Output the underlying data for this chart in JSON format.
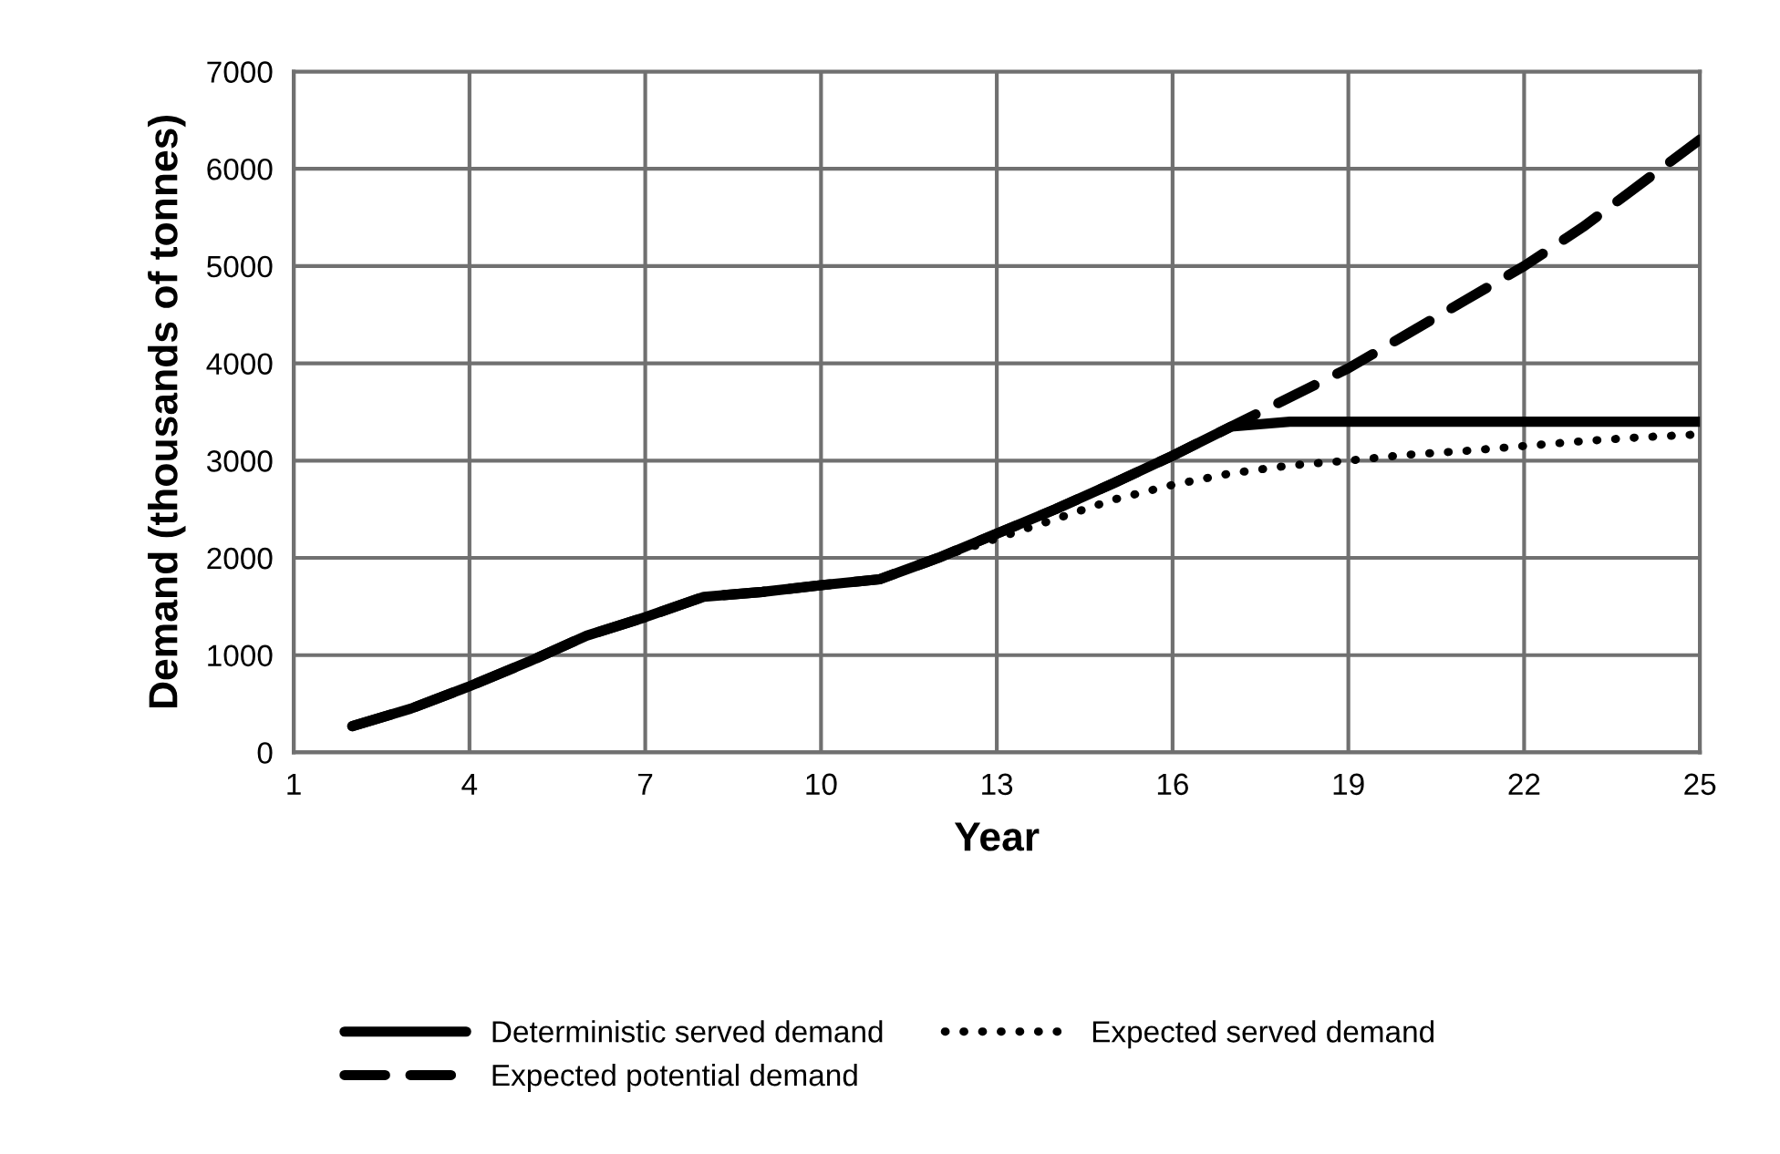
{
  "chart_data": {
    "type": "line",
    "xlabel": "Year",
    "ylabel": "Demand (thousands of tonnes)",
    "x": [
      2,
      3,
      4,
      5,
      6,
      7,
      8,
      9,
      10,
      11,
      12,
      13,
      14,
      15,
      16,
      17,
      18,
      19,
      20,
      21,
      22,
      23,
      24,
      25
    ],
    "series": [
      {
        "name": "Deterministic served demand",
        "color": "#000000",
        "line_style": "solid",
        "values": [
          270,
          450,
          680,
          930,
          1200,
          1390,
          1600,
          1650,
          1720,
          1780,
          2000,
          2250,
          2500,
          2770,
          3050,
          3350,
          3400,
          3400,
          3400,
          3400,
          3400,
          3400,
          3400,
          3400
        ]
      },
      {
        "name": "Expected potential demand",
        "color": "#000000",
        "line_style": "dashed",
        "values": [
          270,
          450,
          680,
          930,
          1200,
          1390,
          1600,
          1650,
          1720,
          1780,
          2000,
          2250,
          2500,
          2770,
          3050,
          3350,
          3650,
          3950,
          4300,
          4650,
          5000,
          5400,
          5850,
          6300
        ]
      },
      {
        "name": "Expected served demand",
        "color": "#000000",
        "line_style": "dotted",
        "values": [
          270,
          450,
          680,
          930,
          1200,
          1390,
          1600,
          1650,
          1720,
          1780,
          2000,
          2200,
          2400,
          2600,
          2750,
          2870,
          2950,
          3000,
          3060,
          3100,
          3150,
          3200,
          3240,
          3270
        ]
      }
    ],
    "xlim": [
      1,
      25
    ],
    "xticks": [
      1,
      4,
      7,
      10,
      13,
      16,
      19,
      22,
      25
    ],
    "ylim": [
      0,
      7000
    ],
    "yticks": [
      0,
      1000,
      2000,
      3000,
      4000,
      5000,
      6000,
      7000
    ],
    "grid": true,
    "legend": "bottom",
    "marker": "none"
  }
}
